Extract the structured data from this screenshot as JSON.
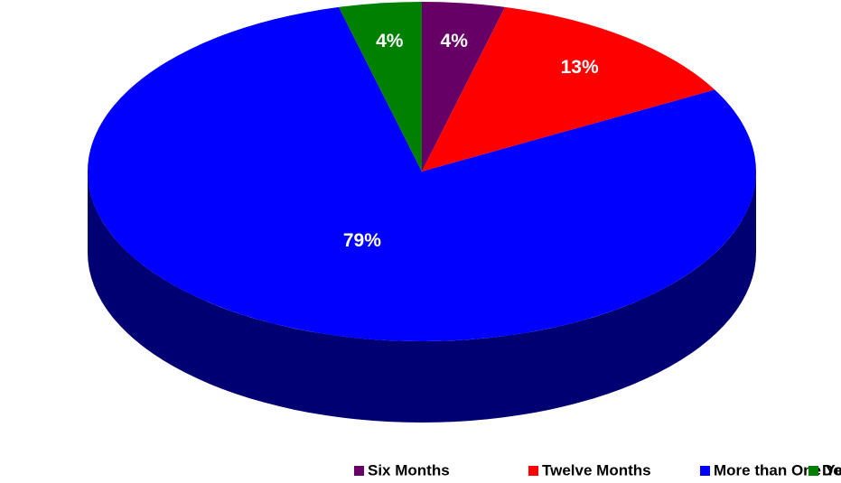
{
  "chart_data": {
    "type": "pie",
    "categories": [
      "Six Months",
      "Twelve Months",
      "More than One Year",
      "Don't Know"
    ],
    "values": [
      4,
      13,
      79,
      4
    ],
    "value_labels": [
      "4%",
      "13%",
      "79%",
      "4%"
    ],
    "colors": [
      "#660066",
      "#ff0000",
      "#0000ff",
      "#008000"
    ],
    "legend": "bottom"
  }
}
